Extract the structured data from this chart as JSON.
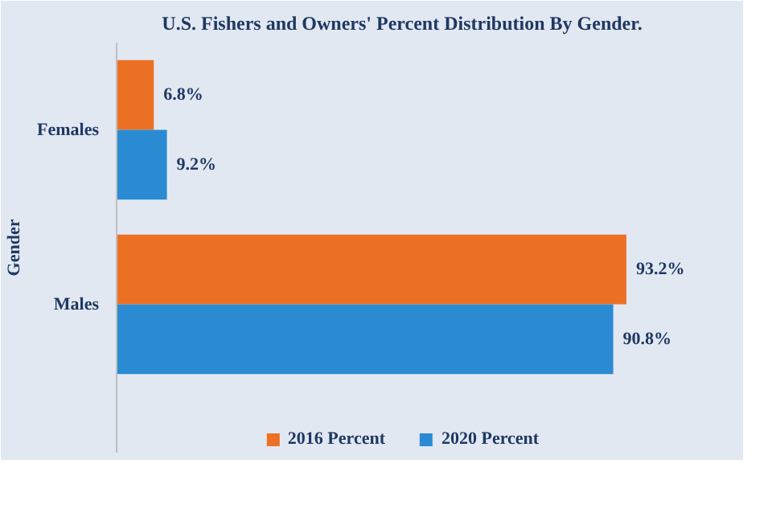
{
  "chart_data": {
    "type": "bar",
    "orientation": "horizontal",
    "title": "U.S. Fishers and Owners' Percent Distribution By Gender.",
    "ylabel": "Gender",
    "categories": [
      "Females",
      "Males"
    ],
    "series": [
      {
        "name": "2016 Percent",
        "color": "#ed7125",
        "values": [
          6.8,
          93.2
        ],
        "value_labels": [
          "6.8%",
          "93.2%"
        ]
      },
      {
        "name": "2020 Percent",
        "color": "#2a8bd2",
        "values": [
          9.2,
          90.8
        ],
        "value_labels": [
          "9.2%",
          "90.8%"
        ]
      }
    ],
    "legend": "bottom",
    "grid": false,
    "tick_labels": "y"
  }
}
